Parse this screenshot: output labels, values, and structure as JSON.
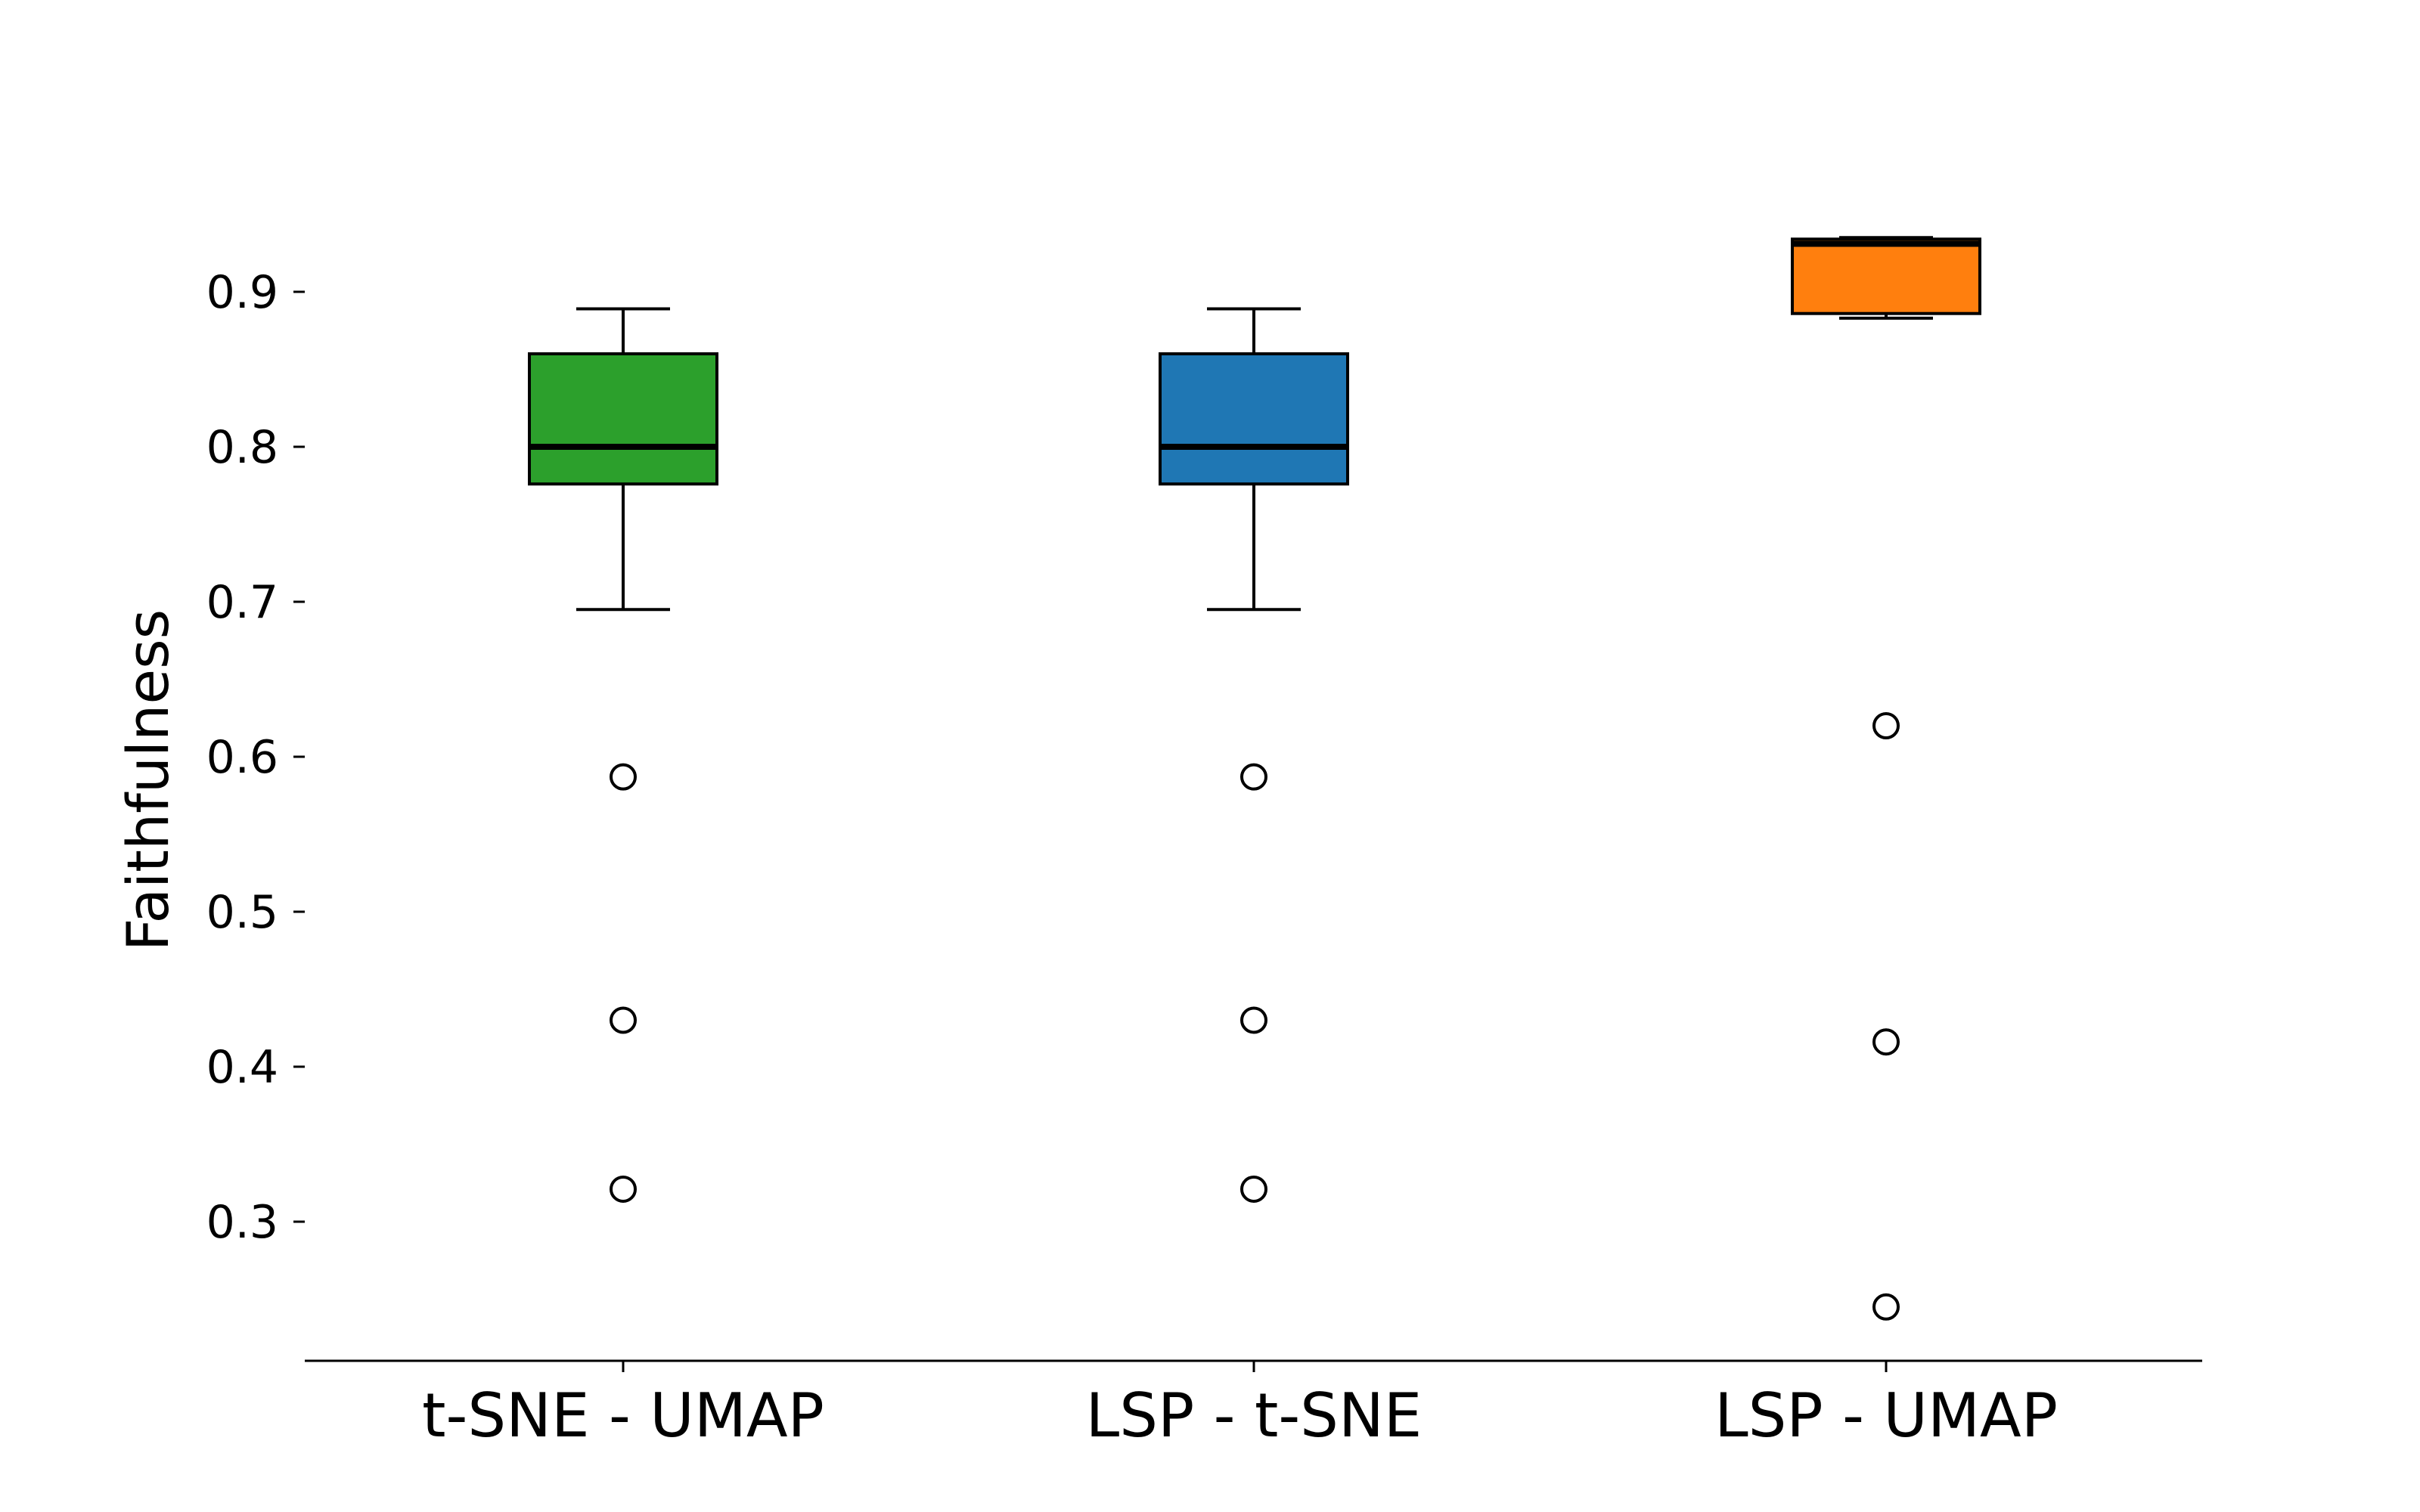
{
  "chart_data": {
    "type": "box",
    "title": "",
    "xlabel": "",
    "ylabel": "Faithfulness",
    "ylim": [
      0.21,
      0.985
    ],
    "yticks": [
      0.3,
      0.4,
      0.5,
      0.6,
      0.7,
      0.8,
      0.9
    ],
    "ytick_labels": [
      "0.3",
      "0.4",
      "0.5",
      "0.6",
      "0.7",
      "0.8",
      "0.9"
    ],
    "grid": false,
    "categories": [
      "t-SNE - UMAP",
      "LSP - t-SNE",
      "LSP - UMAP"
    ],
    "boxes": [
      {
        "category": "t-SNE - UMAP",
        "color": "#2ca02c",
        "whisker_low": 0.695,
        "q1": 0.776,
        "median": 0.8,
        "q3": 0.86,
        "whisker_high": 0.889,
        "outliers": [
          0.587,
          0.43,
          0.321
        ]
      },
      {
        "category": "LSP - t-SNE",
        "color": "#1f77b4",
        "whisker_low": 0.695,
        "q1": 0.776,
        "median": 0.8,
        "q3": 0.86,
        "whisker_high": 0.889,
        "outliers": [
          0.587,
          0.43,
          0.321
        ]
      },
      {
        "category": "LSP - UMAP",
        "color": "#ff7f0e",
        "whisker_low": 0.883,
        "q1": 0.886,
        "median": 0.931,
        "q3": 0.934,
        "whisker_high": 0.935,
        "outliers": [
          0.62,
          0.416,
          0.245
        ]
      }
    ]
  }
}
